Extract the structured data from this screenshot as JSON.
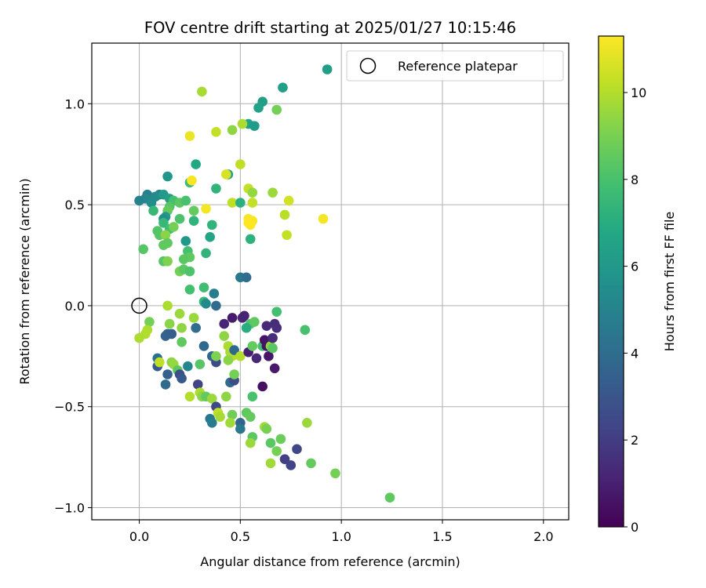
{
  "chart_data": {
    "type": "scatter",
    "title": "FOV centre drift starting at 2025/01/27 10:15:46",
    "xlabel": "Angular distance from reference (arcmin)",
    "ylabel": "Rotation from reference (arcmin)",
    "xlim": [
      -0.235,
      2.125
    ],
    "ylim": [
      -1.06,
      1.3
    ],
    "xticks": [
      0.0,
      0.5,
      1.0,
      1.5,
      2.0
    ],
    "xtick_labels": [
      "0.0",
      "0.5",
      "1.0",
      "1.5",
      "2.0"
    ],
    "yticks": [
      -1.0,
      -0.5,
      0.0,
      0.5,
      1.0
    ],
    "ytick_labels": [
      "−1.0",
      "−0.5",
      "0.0",
      "0.5",
      "1.0"
    ],
    "grid": true,
    "colormap": "viridis",
    "colorbar": {
      "label": "Hours from first FF file",
      "min": 0,
      "max": 11.3,
      "ticks": [
        0,
        2,
        4,
        6,
        8,
        10
      ],
      "tick_labels": [
        "0",
        "2",
        "4",
        "6",
        "8",
        "10"
      ]
    },
    "reference": {
      "label": "Reference platepar",
      "x": 0.0,
      "y": 0.0
    },
    "legend_position": "upper-right",
    "points": [
      {
        "x": 0.93,
        "y": 1.17,
        "h": 6.3
      },
      {
        "x": 0.71,
        "y": 1.08,
        "h": 6.4
      },
      {
        "x": 0.31,
        "y": 1.06,
        "h": 9.8
      },
      {
        "x": 0.61,
        "y": 1.01,
        "h": 6.3
      },
      {
        "x": 0.59,
        "y": 0.98,
        "h": 6.5
      },
      {
        "x": 0.68,
        "y": 0.97,
        "h": 8.9
      },
      {
        "x": 0.54,
        "y": 0.9,
        "h": 6.5
      },
      {
        "x": 0.57,
        "y": 0.89,
        "h": 6.2
      },
      {
        "x": 0.51,
        "y": 0.9,
        "h": 9.9
      },
      {
        "x": 0.46,
        "y": 0.87,
        "h": 9.4
      },
      {
        "x": 0.38,
        "y": 0.86,
        "h": 10.3
      },
      {
        "x": 0.25,
        "y": 0.84,
        "h": 11.0
      },
      {
        "x": 0.5,
        "y": 0.7,
        "h": 10.2
      },
      {
        "x": 0.28,
        "y": 0.7,
        "h": 6.8
      },
      {
        "x": 0.44,
        "y": 0.65,
        "h": 6.4
      },
      {
        "x": 0.43,
        "y": 0.65,
        "h": 10.6
      },
      {
        "x": 0.25,
        "y": 0.61,
        "h": 7.7
      },
      {
        "x": 0.26,
        "y": 0.62,
        "h": 11.2
      },
      {
        "x": 0.14,
        "y": 0.64,
        "h": 5.9
      },
      {
        "x": 0.38,
        "y": 0.58,
        "h": 7.3
      },
      {
        "x": 0.54,
        "y": 0.58,
        "h": 10.3
      },
      {
        "x": 0.56,
        "y": 0.56,
        "h": 9.5
      },
      {
        "x": 0.66,
        "y": 0.56,
        "h": 9.6
      },
      {
        "x": 0.74,
        "y": 0.52,
        "h": 10.5
      },
      {
        "x": 0.46,
        "y": 0.51,
        "h": 10.2
      },
      {
        "x": 0.5,
        "y": 0.51,
        "h": 7.1
      },
      {
        "x": 0.56,
        "y": 0.51,
        "h": 10.3
      },
      {
        "x": 0.33,
        "y": 0.48,
        "h": 11.1
      },
      {
        "x": 0.72,
        "y": 0.45,
        "h": 10.1
      },
      {
        "x": 0.91,
        "y": 0.43,
        "h": 11.1
      },
      {
        "x": 0.54,
        "y": 0.43,
        "h": 11.2
      },
      {
        "x": 0.56,
        "y": 0.42,
        "h": 11.2
      },
      {
        "x": 0.54,
        "y": 0.41,
        "h": 11.3
      },
      {
        "x": 0.55,
        "y": 0.4,
        "h": 11.3
      },
      {
        "x": 0.73,
        "y": 0.35,
        "h": 10.3
      },
      {
        "x": 0.55,
        "y": 0.33,
        "h": 7.2
      },
      {
        "x": 0.36,
        "y": 0.4,
        "h": 7.3
      },
      {
        "x": 0.35,
        "y": 0.34,
        "h": 6.6
      },
      {
        "x": 0.23,
        "y": 0.32,
        "h": 6.0
      },
      {
        "x": 0.33,
        "y": 0.26,
        "h": 7.3
      },
      {
        "x": 0.1,
        "y": 0.55,
        "h": 5.0
      },
      {
        "x": 0.04,
        "y": 0.55,
        "h": 4.9
      },
      {
        "x": 0.03,
        "y": 0.53,
        "h": 5.2
      },
      {
        "x": 0.0,
        "y": 0.52,
        "h": 5.0
      },
      {
        "x": 0.06,
        "y": 0.51,
        "h": 5.5
      },
      {
        "x": 0.08,
        "y": 0.54,
        "h": 5.4
      },
      {
        "x": 0.12,
        "y": 0.55,
        "h": 6.1
      },
      {
        "x": 0.15,
        "y": 0.53,
        "h": 6.4
      },
      {
        "x": 0.17,
        "y": 0.52,
        "h": 7.9
      },
      {
        "x": 0.2,
        "y": 0.51,
        "h": 8.4
      },
      {
        "x": 0.23,
        "y": 0.52,
        "h": 8.0
      },
      {
        "x": 0.15,
        "y": 0.49,
        "h": 8.3
      },
      {
        "x": 0.14,
        "y": 0.47,
        "h": 8.6
      },
      {
        "x": 0.07,
        "y": 0.47,
        "h": 7.5
      },
      {
        "x": 0.13,
        "y": 0.44,
        "h": 6.0
      },
      {
        "x": 0.12,
        "y": 0.43,
        "h": 5.6
      },
      {
        "x": 0.2,
        "y": 0.43,
        "h": 8.1
      },
      {
        "x": 0.27,
        "y": 0.47,
        "h": 8.6
      },
      {
        "x": 0.27,
        "y": 0.42,
        "h": 7.3
      },
      {
        "x": 0.12,
        "y": 0.41,
        "h": 7.5
      },
      {
        "x": 0.15,
        "y": 0.38,
        "h": 7.8
      },
      {
        "x": 0.09,
        "y": 0.37,
        "h": 8.2
      },
      {
        "x": 0.17,
        "y": 0.39,
        "h": 8.9
      },
      {
        "x": 0.1,
        "y": 0.35,
        "h": 8.3
      },
      {
        "x": 0.13,
        "y": 0.35,
        "h": 9.3
      },
      {
        "x": 0.02,
        "y": 0.28,
        "h": 8.3
      },
      {
        "x": 0.12,
        "y": 0.3,
        "h": 8.5
      },
      {
        "x": 0.14,
        "y": 0.31,
        "h": 8.5
      },
      {
        "x": 0.24,
        "y": 0.27,
        "h": 7.9
      },
      {
        "x": 0.25,
        "y": 0.24,
        "h": 8.5
      },
      {
        "x": 0.22,
        "y": 0.23,
        "h": 8.4
      },
      {
        "x": 0.12,
        "y": 0.22,
        "h": 8.3
      },
      {
        "x": 0.14,
        "y": 0.22,
        "h": 9.1
      },
      {
        "x": 0.2,
        "y": 0.17,
        "h": 8.9
      },
      {
        "x": 0.22,
        "y": 0.18,
        "h": 8.4
      },
      {
        "x": 0.25,
        "y": 0.17,
        "h": 8.1
      },
      {
        "x": 0.25,
        "y": 0.08,
        "h": 7.9
      },
      {
        "x": 0.5,
        "y": 0.14,
        "h": 4.5
      },
      {
        "x": 0.53,
        "y": 0.14,
        "h": 4.0
      },
      {
        "x": 0.32,
        "y": 0.09,
        "h": 7.8
      },
      {
        "x": 0.37,
        "y": 0.06,
        "h": 4.8
      },
      {
        "x": 0.32,
        "y": 0.02,
        "h": 7.4
      },
      {
        "x": 0.33,
        "y": 0.01,
        "h": 5.4
      },
      {
        "x": 0.38,
        "y": 0.0,
        "h": 4.0
      },
      {
        "x": 0.14,
        "y": 0.0,
        "h": 9.9
      },
      {
        "x": 0.2,
        "y": -0.04,
        "h": 9.6
      },
      {
        "x": 0.27,
        "y": -0.06,
        "h": 9.6
      },
      {
        "x": 0.05,
        "y": -0.08,
        "h": 8.9
      },
      {
        "x": 0.15,
        "y": -0.09,
        "h": 9.3
      },
      {
        "x": 0.04,
        "y": -0.12,
        "h": 9.9
      },
      {
        "x": 0.03,
        "y": -0.14,
        "h": 10.0
      },
      {
        "x": 0.0,
        "y": -0.16,
        "h": 9.9
      },
      {
        "x": 0.21,
        "y": -0.11,
        "h": 9.4
      },
      {
        "x": 0.28,
        "y": -0.11,
        "h": 4.0
      },
      {
        "x": 0.14,
        "y": -0.14,
        "h": 3.6
      },
      {
        "x": 0.13,
        "y": -0.15,
        "h": 3.5
      },
      {
        "x": 0.16,
        "y": -0.14,
        "h": 3.4
      },
      {
        "x": 0.21,
        "y": -0.18,
        "h": 8.5
      },
      {
        "x": 0.32,
        "y": -0.2,
        "h": 3.8
      },
      {
        "x": 0.42,
        "y": -0.09,
        "h": 1.2
      },
      {
        "x": 0.46,
        "y": -0.06,
        "h": 0.8
      },
      {
        "x": 0.51,
        "y": -0.06,
        "h": 1.3
      },
      {
        "x": 0.52,
        "y": -0.05,
        "h": 1.1
      },
      {
        "x": 0.55,
        "y": -0.09,
        "h": 8.1
      },
      {
        "x": 0.57,
        "y": -0.08,
        "h": 8.5
      },
      {
        "x": 0.53,
        "y": -0.11,
        "h": 7.0
      },
      {
        "x": 0.63,
        "y": -0.1,
        "h": 1.3
      },
      {
        "x": 0.67,
        "y": -0.09,
        "h": 1.4
      },
      {
        "x": 0.68,
        "y": -0.11,
        "h": 1.5
      },
      {
        "x": 0.68,
        "y": -0.03,
        "h": 7.9
      },
      {
        "x": 0.82,
        "y": -0.12,
        "h": 8.0
      },
      {
        "x": 0.44,
        "y": -0.2,
        "h": 9.9
      },
      {
        "x": 0.45,
        "y": -0.23,
        "h": 9.8
      },
      {
        "x": 0.46,
        "y": -0.25,
        "h": 10.0
      },
      {
        "x": 0.42,
        "y": -0.15,
        "h": 9.4
      },
      {
        "x": 0.47,
        "y": -0.22,
        "h": 3.8
      },
      {
        "x": 0.44,
        "y": -0.27,
        "h": 9.3
      },
      {
        "x": 0.5,
        "y": -0.25,
        "h": 10.0
      },
      {
        "x": 0.54,
        "y": -0.23,
        "h": 1.0
      },
      {
        "x": 0.56,
        "y": -0.2,
        "h": 8.6
      },
      {
        "x": 0.58,
        "y": -0.26,
        "h": 1.3
      },
      {
        "x": 0.61,
        "y": -0.2,
        "h": 7.9
      },
      {
        "x": 0.62,
        "y": -0.17,
        "h": 0.6
      },
      {
        "x": 0.63,
        "y": -0.2,
        "h": 0.6
      },
      {
        "x": 0.64,
        "y": -0.25,
        "h": 0.7
      },
      {
        "x": 0.65,
        "y": -0.2,
        "h": 9.5
      },
      {
        "x": 0.66,
        "y": -0.21,
        "h": 8.4
      },
      {
        "x": 0.66,
        "y": -0.16,
        "h": 1.4
      },
      {
        "x": 0.67,
        "y": -0.31,
        "h": 0.8
      },
      {
        "x": 0.61,
        "y": -0.4,
        "h": 0.5
      },
      {
        "x": 0.36,
        "y": -0.25,
        "h": 3.8
      },
      {
        "x": 0.38,
        "y": -0.28,
        "h": 2.6
      },
      {
        "x": 0.38,
        "y": -0.25,
        "h": 9.1
      },
      {
        "x": 0.3,
        "y": -0.29,
        "h": 8.3
      },
      {
        "x": 0.24,
        "y": -0.3,
        "h": 5.1
      },
      {
        "x": 0.09,
        "y": -0.26,
        "h": 4.1
      },
      {
        "x": 0.09,
        "y": -0.3,
        "h": 3.2
      },
      {
        "x": 0.1,
        "y": -0.28,
        "h": 10.2
      },
      {
        "x": 0.16,
        "y": -0.28,
        "h": 9.3
      },
      {
        "x": 0.17,
        "y": -0.29,
        "h": 9.5
      },
      {
        "x": 0.19,
        "y": -0.32,
        "h": 8.4
      },
      {
        "x": 0.14,
        "y": -0.34,
        "h": 3.5
      },
      {
        "x": 0.2,
        "y": -0.34,
        "h": 2.7
      },
      {
        "x": 0.21,
        "y": -0.36,
        "h": 3.1
      },
      {
        "x": 0.13,
        "y": -0.39,
        "h": 3.9
      },
      {
        "x": 0.29,
        "y": -0.39,
        "h": 2.3
      },
      {
        "x": 0.45,
        "y": -0.38,
        "h": 3.9
      },
      {
        "x": 0.47,
        "y": -0.37,
        "h": 2.6
      },
      {
        "x": 0.47,
        "y": -0.34,
        "h": 8.9
      },
      {
        "x": 0.3,
        "y": -0.43,
        "h": 9.9
      },
      {
        "x": 0.31,
        "y": -0.45,
        "h": 9.3
      },
      {
        "x": 0.33,
        "y": -0.45,
        "h": 8.6
      },
      {
        "x": 0.36,
        "y": -0.46,
        "h": 9.6
      },
      {
        "x": 0.25,
        "y": -0.45,
        "h": 10.0
      },
      {
        "x": 0.38,
        "y": -0.5,
        "h": 2.4
      },
      {
        "x": 0.39,
        "y": -0.53,
        "h": 10.2
      },
      {
        "x": 0.4,
        "y": -0.55,
        "h": 9.8
      },
      {
        "x": 0.43,
        "y": -0.45,
        "h": 9.4
      },
      {
        "x": 0.56,
        "y": -0.45,
        "h": 8.0
      },
      {
        "x": 0.46,
        "y": -0.54,
        "h": 8.8
      },
      {
        "x": 0.45,
        "y": -0.58,
        "h": 9.7
      },
      {
        "x": 0.5,
        "y": -0.58,
        "h": 3.6
      },
      {
        "x": 0.5,
        "y": -0.61,
        "h": 4.5
      },
      {
        "x": 0.53,
        "y": -0.53,
        "h": 8.5
      },
      {
        "x": 0.55,
        "y": -0.55,
        "h": 8.6
      },
      {
        "x": 0.35,
        "y": -0.56,
        "h": 4.5
      },
      {
        "x": 0.36,
        "y": -0.58,
        "h": 4.7
      },
      {
        "x": 0.56,
        "y": -0.65,
        "h": 8.4
      },
      {
        "x": 0.55,
        "y": -0.68,
        "h": 9.6
      },
      {
        "x": 0.62,
        "y": -0.6,
        "h": 9.7
      },
      {
        "x": 0.63,
        "y": -0.61,
        "h": 9.0
      },
      {
        "x": 0.65,
        "y": -0.68,
        "h": 8.4
      },
      {
        "x": 0.68,
        "y": -0.72,
        "h": 8.9
      },
      {
        "x": 0.7,
        "y": -0.66,
        "h": 8.7
      },
      {
        "x": 0.72,
        "y": -0.76,
        "h": 2.1
      },
      {
        "x": 0.75,
        "y": -0.79,
        "h": 2.3
      },
      {
        "x": 0.78,
        "y": -0.71,
        "h": 2.4
      },
      {
        "x": 0.65,
        "y": -0.78,
        "h": 9.7
      },
      {
        "x": 0.83,
        "y": -0.58,
        "h": 9.6
      },
      {
        "x": 0.85,
        "y": -0.78,
        "h": 8.6
      },
      {
        "x": 0.97,
        "y": -0.83,
        "h": 8.9
      },
      {
        "x": 1.24,
        "y": -0.95,
        "h": 8.5
      }
    ]
  }
}
